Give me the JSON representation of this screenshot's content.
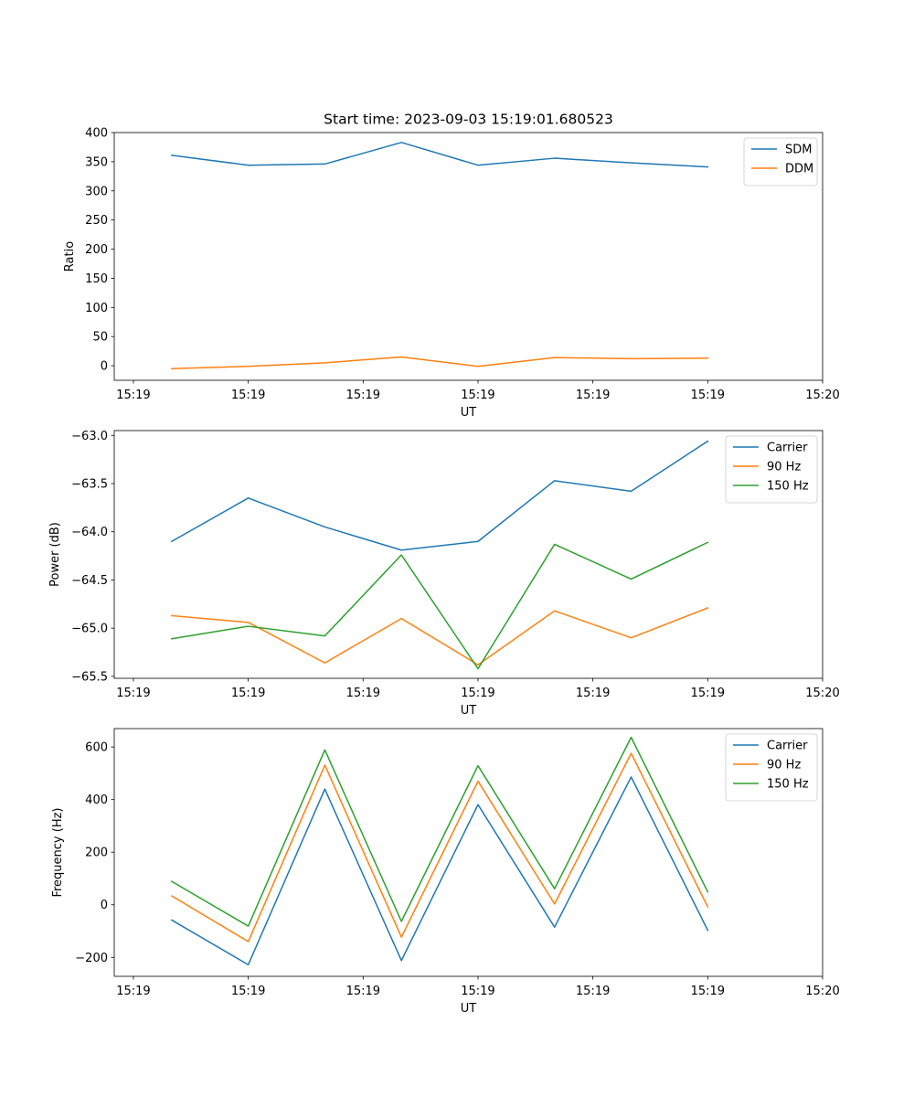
{
  "figure": {
    "title": "Start time: 2023-09-03 15:19:01.680523"
  },
  "chart_data": [
    {
      "type": "line",
      "title": "Start time: 2023-09-03 15:19:01.680523",
      "xlabel": "UT",
      "ylabel": "Ratio",
      "xlim": [
        -0.75,
        8.5
      ],
      "ylim": [
        -25,
        400
      ],
      "xticks": [
        -0.5,
        1.0,
        2.5,
        4.0,
        5.5,
        7.0,
        8.5
      ],
      "xticklabels": [
        "15:19",
        "15:19",
        "15:19",
        "15:19",
        "15:19",
        "15:19",
        "15:20"
      ],
      "yticks": [
        0,
        50,
        100,
        150,
        200,
        250,
        300,
        350,
        400
      ],
      "yticklabels": [
        "0",
        "50",
        "100",
        "150",
        "200",
        "250",
        "300",
        "350",
        "400"
      ],
      "legend_position": "top-right",
      "x": [
        0,
        1,
        2,
        3,
        4,
        5,
        6,
        7
      ],
      "series": [
        {
          "name": "SDM",
          "color": "#1f77b4",
          "values": [
            361,
            344,
            346,
            383,
            344,
            356,
            348,
            341
          ]
        },
        {
          "name": "DDM",
          "color": "#ff7f0e",
          "values": [
            -5,
            -1,
            5,
            15,
            -1,
            14,
            12,
            13
          ]
        }
      ]
    },
    {
      "type": "line",
      "title": "",
      "xlabel": "UT",
      "ylabel": "Power (dB)",
      "xlim": [
        -0.75,
        8.5
      ],
      "ylim": [
        -65.52,
        -62.95
      ],
      "xticks": [
        -0.5,
        1.0,
        2.5,
        4.0,
        5.5,
        7.0,
        8.5
      ],
      "xticklabels": [
        "15:19",
        "15:19",
        "15:19",
        "15:19",
        "15:19",
        "15:19",
        "15:20"
      ],
      "yticks": [
        -65.5,
        -65.0,
        -64.5,
        -64.0,
        -63.5,
        -63.0
      ],
      "yticklabels": [
        "−65.5",
        "−65.0",
        "−64.5",
        "−64.0",
        "−63.5",
        "−63.0"
      ],
      "legend_position": "top-right",
      "x": [
        0,
        1,
        2,
        3,
        4,
        5,
        6,
        7
      ],
      "series": [
        {
          "name": "Carrier",
          "color": "#1f77b4",
          "values": [
            -64.1,
            -63.65,
            -63.95,
            -64.19,
            -64.1,
            -63.47,
            -63.58,
            -63.06
          ]
        },
        {
          "name": "90 Hz",
          "color": "#ff7f0e",
          "values": [
            -64.87,
            -64.94,
            -65.36,
            -64.9,
            -65.38,
            -64.82,
            -65.1,
            -64.79
          ]
        },
        {
          "name": "150 Hz",
          "color": "#2ca02c",
          "values": [
            -65.11,
            -64.98,
            -65.08,
            -64.24,
            -65.42,
            -64.13,
            -64.49,
            -64.11
          ]
        }
      ]
    },
    {
      "type": "line",
      "title": "",
      "xlabel": "UT",
      "ylabel": "Frequency (Hz)",
      "xlim": [
        -0.75,
        8.5
      ],
      "ylim": [
        -272,
        670
      ],
      "xticks": [
        -0.5,
        1.0,
        2.5,
        4.0,
        5.5,
        7.0,
        8.5
      ],
      "xticklabels": [
        "15:19",
        "15:19",
        "15:19",
        "15:19",
        "15:19",
        "15:19",
        "15:20"
      ],
      "yticks": [
        -200,
        0,
        200,
        400,
        600
      ],
      "yticklabels": [
        "−200",
        "0",
        "200",
        "400",
        "600"
      ],
      "legend_position": "top-right",
      "x": [
        0,
        1,
        2,
        3,
        4,
        5,
        6,
        7
      ],
      "series": [
        {
          "name": "Carrier",
          "color": "#1f77b4",
          "values": [
            -58,
            -228,
            440,
            -212,
            381,
            -85,
            486,
            -97
          ]
        },
        {
          "name": "90 Hz",
          "color": "#ff7f0e",
          "values": [
            34,
            -140,
            531,
            -123,
            470,
            3,
            576,
            -8
          ]
        },
        {
          "name": "150 Hz",
          "color": "#2ca02c",
          "values": [
            89,
            -81,
            589,
            -63,
            529,
            61,
            637,
            49
          ]
        }
      ]
    }
  ]
}
